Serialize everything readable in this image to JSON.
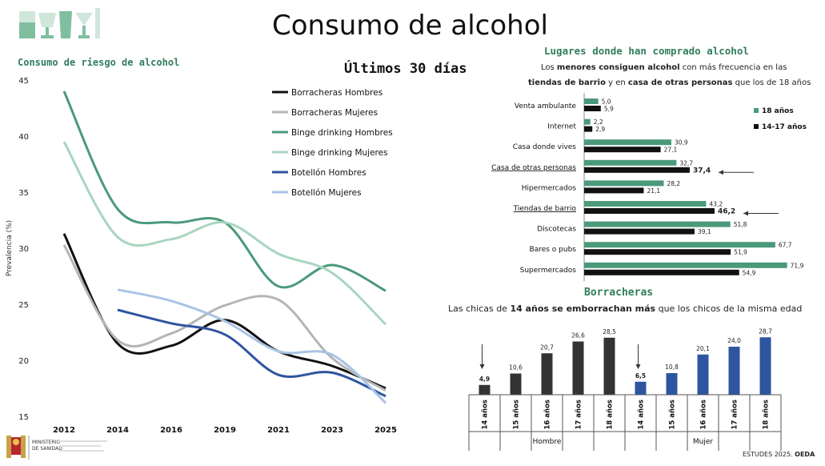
{
  "header": {
    "title": "Consumo de alcohol",
    "left_subtitle": "Consumo de riesgo de alcohol",
    "period": "Últimos 30 días",
    "right_subtitle": "Lugares donde han comprado alcohol",
    "note_line1": [
      {
        "t": "Los ",
        "b": false
      },
      {
        "t": "menores consiguen alcohol",
        "b": true
      },
      {
        "t": " con más frecuencia en las",
        "b": false
      }
    ],
    "note_line2": [
      {
        "t": "tiendas de barrio",
        "b": true
      },
      {
        "t": " y en ",
        "b": false
      },
      {
        "t": "casa de otras personas",
        "b": true
      },
      {
        "t": " que los de 18 años",
        "b": false
      }
    ],
    "borr_title": "Borracheras",
    "borr_note": [
      {
        "t": "Las chicas de ",
        "b": false
      },
      {
        "t": "14 años se emborrachan más",
        "b": true
      },
      {
        "t": " que los chicos de la misma edad",
        "b": false
      }
    ],
    "footer_source": "ESTUDES 2025. ",
    "footer_org": "OEDA",
    "gov_line1": "MINISTERIO",
    "gov_line2": "DE SANIDAD"
  },
  "chart_data": [
    {
      "type": "line",
      "title": "Consumo de riesgo de alcohol",
      "ylabel": "Prevalencia (%)",
      "ylim": [
        15,
        45
      ],
      "yticks": [
        15,
        20,
        25,
        30,
        35,
        40,
        45
      ],
      "x": [
        "2012",
        "2014",
        "2016",
        "2019",
        "2021",
        "2023",
        "2025"
      ],
      "series": [
        {
          "name": "Borracheras Hombres",
          "color": "#111111",
          "values": [
            31.3,
            21.5,
            21.3,
            23.6,
            20.8,
            19.5,
            17.5
          ]
        },
        {
          "name": "Borracheras Mujeres",
          "color": "#b5b5b5",
          "values": [
            30.3,
            21.8,
            22.4,
            24.9,
            25.4,
            20.2,
            17.3
          ]
        },
        {
          "name": "Binge drinking Hombres",
          "color": "#4a9a7a",
          "values": [
            44.0,
            33.5,
            32.3,
            32.3,
            26.6,
            28.5,
            26.2
          ]
        },
        {
          "name": "Binge drinking Mujeres",
          "color": "#a8d5bf",
          "values": [
            39.5,
            31.0,
            30.8,
            32.3,
            29.5,
            27.8,
            23.2
          ]
        },
        {
          "name": "Botellón Hombres",
          "color": "#2e55a0",
          "values": [
            null,
            24.5,
            23.3,
            22.3,
            18.7,
            18.9,
            16.8
          ]
        },
        {
          "name": "Botellón Mujeres",
          "color": "#a9c3e6",
          "values": [
            null,
            26.3,
            25.3,
            23.5,
            20.8,
            20.5,
            16.2
          ]
        }
      ]
    },
    {
      "type": "bar",
      "title": "Lugares donde han comprado alcohol",
      "categories": [
        "Venta ambulante",
        "Internet",
        "Casa donde vives",
        "Casa de otras personas",
        "Hipermercados",
        "Tiendas de barrio",
        "Discotecas",
        "Bares o pubs",
        "Supermercados"
      ],
      "underlined": [
        false,
        false,
        false,
        true,
        false,
        true,
        false,
        false,
        false
      ],
      "arrows": [
        false,
        false,
        false,
        true,
        false,
        true,
        false,
        false,
        false
      ],
      "series": [
        {
          "name": "18 años",
          "color": "#4a9a7a",
          "values": [
            5.0,
            2.2,
            30.9,
            32.7,
            28.2,
            43.2,
            51.8,
            67.7,
            71.9
          ],
          "labels": [
            "5,0",
            "2,2",
            "30,9",
            "32,7",
            "28,2",
            "43,2",
            "51,8",
            "67,7",
            "71,9"
          ]
        },
        {
          "name": "14-17 años",
          "color": "#111111",
          "values": [
            5.9,
            2.9,
            27.1,
            37.4,
            21.1,
            46.2,
            39.1,
            51.9,
            54.9
          ],
          "labels": [
            "5,9",
            "2,9",
            "27,1",
            "37,4",
            "21,1",
            "46,2",
            "39,1",
            "51,9",
            "54,9"
          ],
          "bold": [
            false,
            false,
            false,
            true,
            false,
            true,
            false,
            false,
            false
          ]
        }
      ],
      "xlim": [
        0,
        75
      ]
    },
    {
      "type": "bar",
      "title": "Borracheras",
      "groups": [
        {
          "name": "Hombre",
          "color": "#333333",
          "categories": [
            "14 años",
            "15 años",
            "16 años",
            "17 años",
            "18 años"
          ],
          "values": [
            4.9,
            10.6,
            20.7,
            26.6,
            28.5
          ],
          "labels": [
            "4,9",
            "10,6",
            "20,7",
            "26,6",
            "28,5"
          ]
        },
        {
          "name": "Mujer",
          "color": "#2e55a0",
          "categories": [
            "14 años",
            "15 años",
            "16 años",
            "17 años",
            "18 años"
          ],
          "values": [
            6.5,
            10.8,
            20.1,
            24.0,
            28.7
          ],
          "labels": [
            "6,5",
            "10,8",
            "20,1",
            "24,0",
            "28,7"
          ]
        }
      ],
      "ylim": [
        0,
        30
      ]
    }
  ]
}
